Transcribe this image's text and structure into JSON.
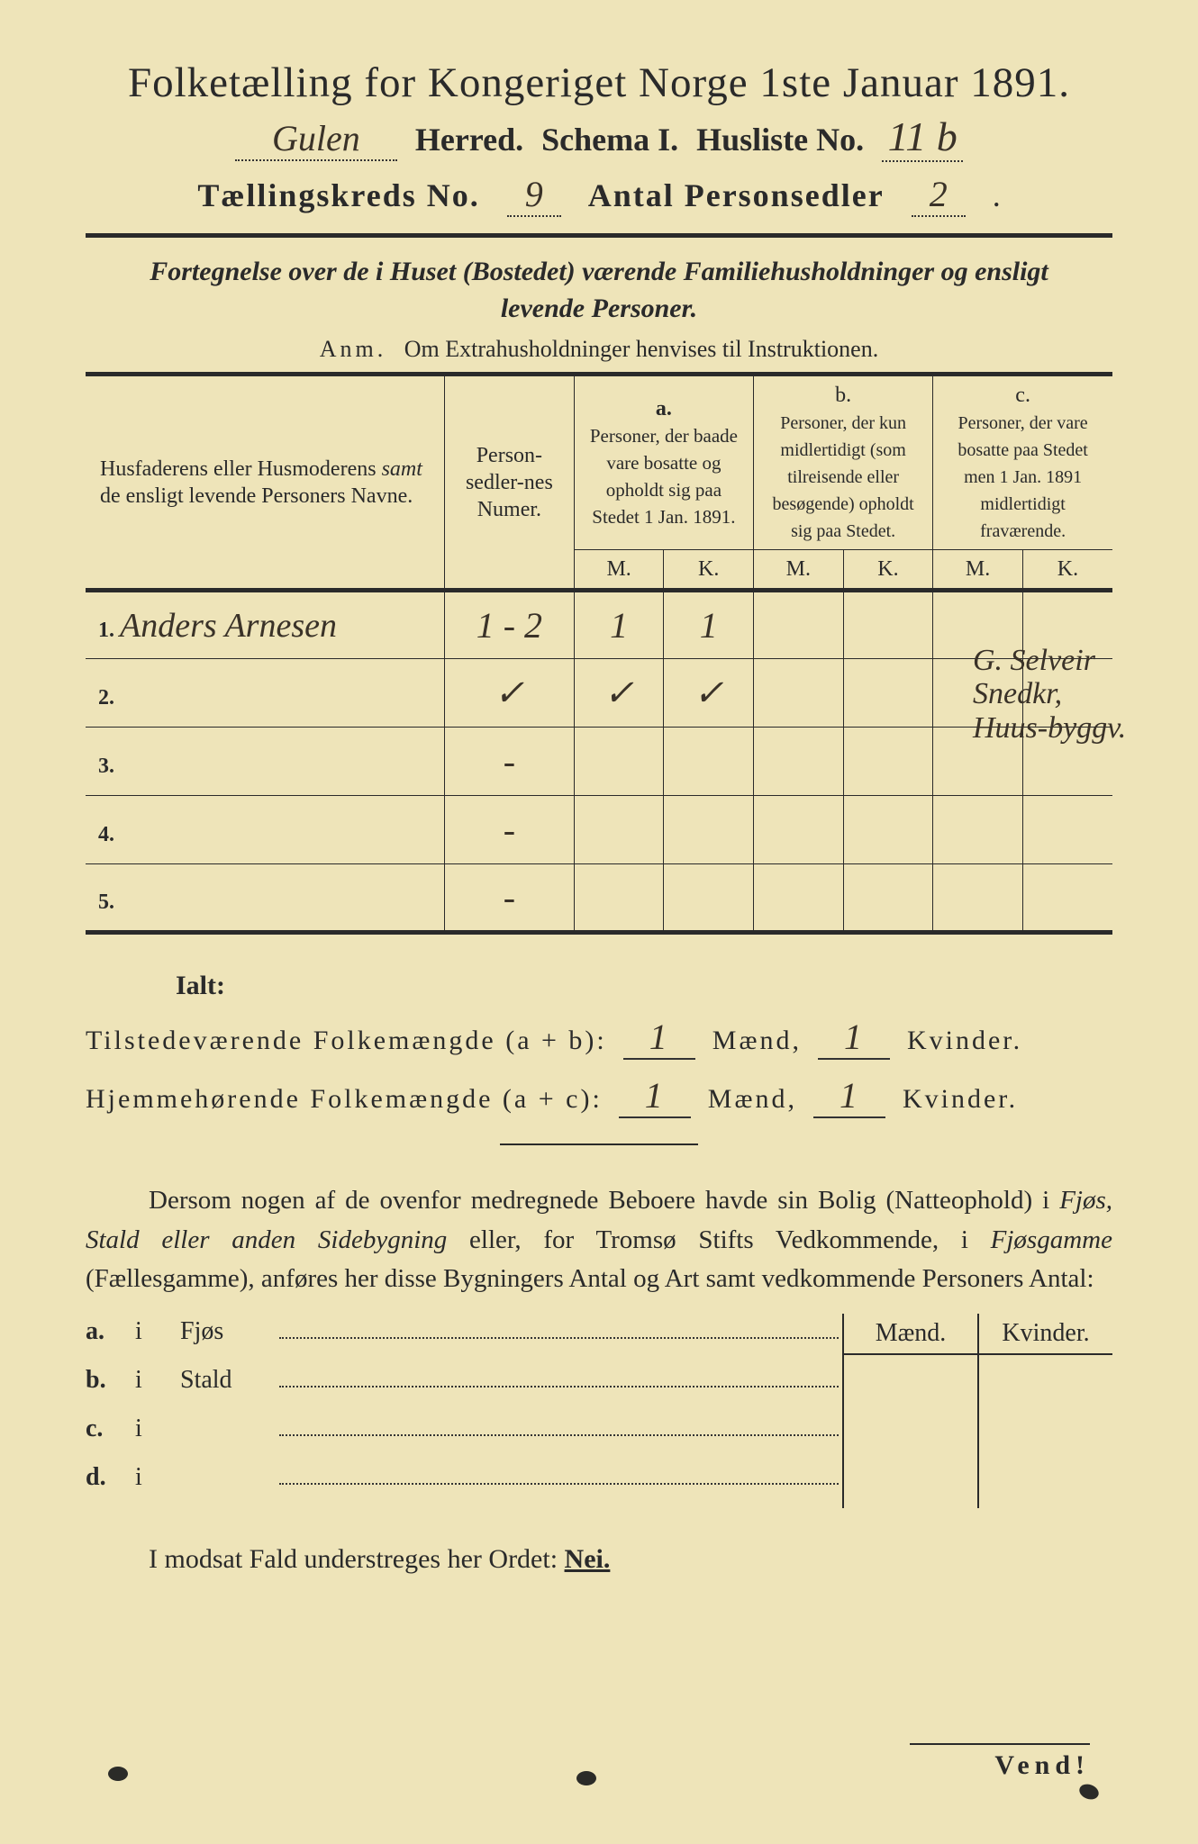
{
  "title": "Folketælling for Kongeriget Norge 1ste Januar 1891.",
  "header": {
    "herred_field": "Gulen",
    "herred_label": "Herred.",
    "schema_label": "Schema I.",
    "husliste_label": "Husliste No.",
    "husliste_value": "11 b",
    "tkreds_label": "Tællingskreds No.",
    "tkreds_value": "9",
    "antal_label": "Antal Personsedler",
    "antal_value": "2"
  },
  "subtitle_line1": "Fortegnelse over de i Huset (Bostedet) værende Familiehusholdninger og ensligt",
  "subtitle_line2": "levende Personer.",
  "anm_prefix": "Anm.",
  "anm_text": "Om Extrahusholdninger henvises til Instruktionen.",
  "columns": {
    "names": "Husfaderens eller Husmoderens samt de ensligt levende Personers Navne.",
    "num": "Person-sedler-nes Numer.",
    "a_label": "a.",
    "a_text": "Personer, der baade vare bosatte og opholdt sig paa Stedet 1 Jan. 1891.",
    "b_label": "b.",
    "b_text": "Personer, der kun midlertidigt (som tilreisende eller besøgende) opholdt sig paa Stedet.",
    "c_label": "c.",
    "c_text": "Personer, der vare bosatte paa Stedet men 1 Jan. 1891 midlertidigt fraværende.",
    "M": "M.",
    "K": "K."
  },
  "rows": [
    {
      "n": "1.",
      "name": "Anders Arnesen",
      "num": "1 - 2",
      "aM": "1",
      "aK": "1",
      "bM": "",
      "bK": "",
      "cM": "",
      "cK": ""
    },
    {
      "n": "2.",
      "name": "",
      "num": "✓",
      "aM": "✓",
      "aK": "✓",
      "bM": "",
      "bK": "",
      "cM": "",
      "cK": ""
    },
    {
      "n": "3.",
      "name": "",
      "num": "-",
      "aM": "",
      "aK": "",
      "bM": "",
      "bK": "",
      "cM": "",
      "cK": ""
    },
    {
      "n": "4.",
      "name": "",
      "num": "-",
      "aM": "",
      "aK": "",
      "bM": "",
      "bK": "",
      "cM": "",
      "cK": ""
    },
    {
      "n": "5.",
      "name": "",
      "num": "-",
      "aM": "",
      "aK": "",
      "bM": "",
      "bK": "",
      "cM": "",
      "cK": ""
    }
  ],
  "margin_note": "G. Selveir Snedkr, Huus-byggv.",
  "ialt_label": "Ialt:",
  "tilstede_label": "Tilstedeværende Folkemængde (a + b):",
  "hjemme_label": "Hjemmehørende Folkemængde (a + c):",
  "maend": "Mænd,",
  "kvinder": "Kvinder.",
  "tilstede_m": "1",
  "tilstede_k": "1",
  "hjemme_m": "1",
  "hjemme_k": "1",
  "para_text": "Dersom nogen af de ovenfor medregnede Beboere havde sin Bolig (Natteophold) i Fjøs, Stald eller anden Sidebygning eller, for Tromsø Stifts Vedkommende, i Fjøsgamme (Fællesgamme), anføres her disse Bygningers Antal og Art samt vedkommende Personers Antal:",
  "side_cols": {
    "m": "Mænd.",
    "k": "Kvinder."
  },
  "side_rows": [
    {
      "lbl": "a.",
      "i": "i",
      "name": "Fjøs"
    },
    {
      "lbl": "b.",
      "i": "i",
      "name": "Stald"
    },
    {
      "lbl": "c.",
      "i": "i",
      "name": ""
    },
    {
      "lbl": "d.",
      "i": "i",
      "name": ""
    }
  ],
  "modsat_text": "I modsat Fald understreges her Ordet:",
  "nei": "Nei.",
  "vend": "Vend!",
  "colors": {
    "paper": "#eee4b9",
    "ink": "#2a2a2a",
    "handwriting": "#3a3228",
    "border": "#000000"
  }
}
